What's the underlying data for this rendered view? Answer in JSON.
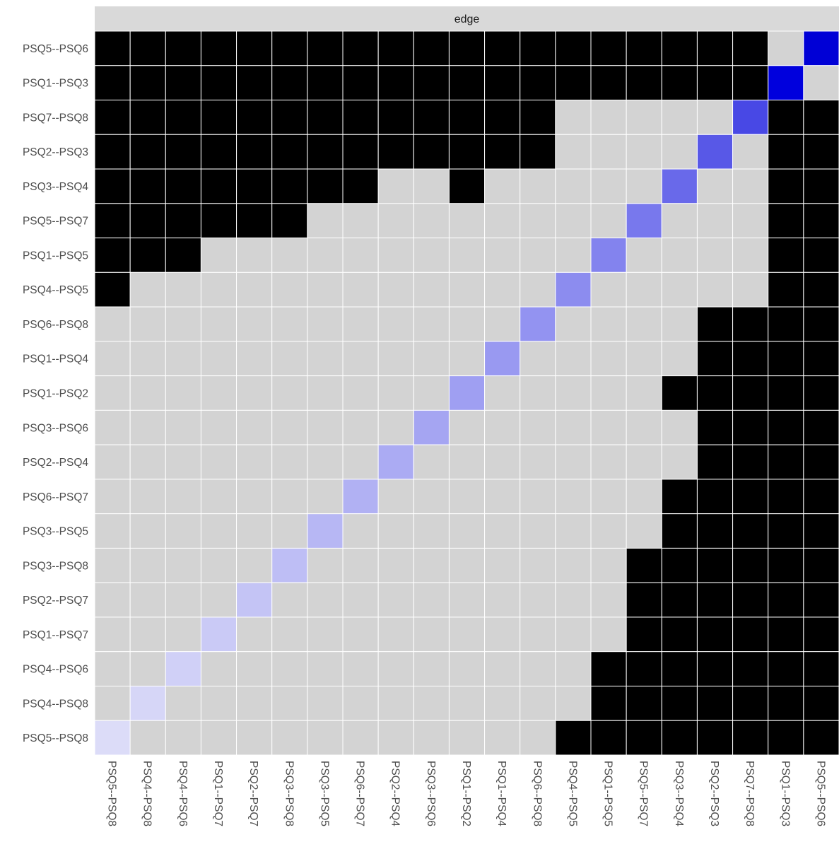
{
  "chart_data": {
    "type": "heatmap",
    "facet_label": "edge",
    "rows": [
      "PSQ5--PSQ6",
      "PSQ1--PSQ3",
      "PSQ7--PSQ8",
      "PSQ2--PSQ3",
      "PSQ3--PSQ4",
      "PSQ5--PSQ7",
      "PSQ1--PSQ5",
      "PSQ4--PSQ5",
      "PSQ6--PSQ8",
      "PSQ1--PSQ4",
      "PSQ1--PSQ2",
      "PSQ3--PSQ6",
      "PSQ2--PSQ4",
      "PSQ6--PSQ7",
      "PSQ3--PSQ5",
      "PSQ3--PSQ8",
      "PSQ2--PSQ7",
      "PSQ1--PSQ7",
      "PSQ4--PSQ6",
      "PSQ4--PSQ8",
      "PSQ5--PSQ8"
    ],
    "columns": [
      "PSQ5--PSQ8",
      "PSQ4--PSQ8",
      "PSQ4--PSQ6",
      "PSQ1--PSQ7",
      "PSQ2--PSQ7",
      "PSQ3--PSQ8",
      "PSQ3--PSQ5",
      "PSQ6--PSQ7",
      "PSQ2--PSQ4",
      "PSQ3--PSQ6",
      "PSQ1--PSQ2",
      "PSQ1--PSQ4",
      "PSQ6--PSQ8",
      "PSQ4--PSQ5",
      "PSQ1--PSQ5",
      "PSQ5--PSQ7",
      "PSQ3--PSQ4",
      "PSQ2--PSQ3",
      "PSQ7--PSQ8",
      "PSQ1--PSQ3",
      "PSQ5--PSQ6"
    ],
    "cells": [
      "BBBBBBBBBBBBBBBBBBBGD",
      "BBBBBBBBBBBBBBBBBBBDG",
      "BBBBBBBBBBBBBGGGGGDBB",
      "BBBBBBBBBBBBBGGGGDGBB",
      "BBBBBBBBGGBGGGGGDGGBB",
      "BBBBBBGGGGGGGGGDGGGBB",
      "BBBGGGGGGGGGGGDGGGGBB",
      "BGGGGGGGGGGGGDGGGGGBB",
      "GGGGGGGGGGGGDGGGGBBBB",
      "GGGGGGGGGGGDGGGGGBBBB",
      "GGGGGGGGGGDGGGGGBBBBB",
      "GGGGGGGGGDGGGGGGGBBBB",
      "GGGGGGGGDGGGGGGGGBBBB",
      "GGGGGGGDGGGGGGGGBBBBB",
      "GGGGGGDGGGGGGGGGBBBBB",
      "GGGGGDGGGGGGGGGBBBBBB",
      "GGGGDGGGGGGGGGGBBBBBB",
      "GGGDGGGGGGGGGGGBBBBBB",
      "GGDGGGGGGGGGGGBBBBBBB",
      "GDGGGGGGGGGGGGBBBBBBB",
      "DGGGGGGGGGGGGBBBBBBBB"
    ],
    "cell_legend": {
      "B": "black",
      "G": "grey",
      "D": "diagonal (blue, shade by column)"
    },
    "diagonal_colors": [
      "#dcdcf8",
      "#d6d6f7",
      "#d0d0f7",
      "#cacaf6",
      "#c4c4f5",
      "#bebef5",
      "#b7b7f4",
      "#b1b1f3",
      "#ababf3",
      "#a5a5f2",
      "#9f9ff2",
      "#9999f1",
      "#9393f1",
      "#8c8cef",
      "#8383ee",
      "#7878ed",
      "#6969ea",
      "#5858e7",
      "#4848e5",
      "#0000dd",
      "#0000d6"
    ],
    "colors": {
      "black": "#000000",
      "grey": "#d3d3d3",
      "grid": "#ffffff",
      "strip": "#d9d9d9"
    }
  }
}
